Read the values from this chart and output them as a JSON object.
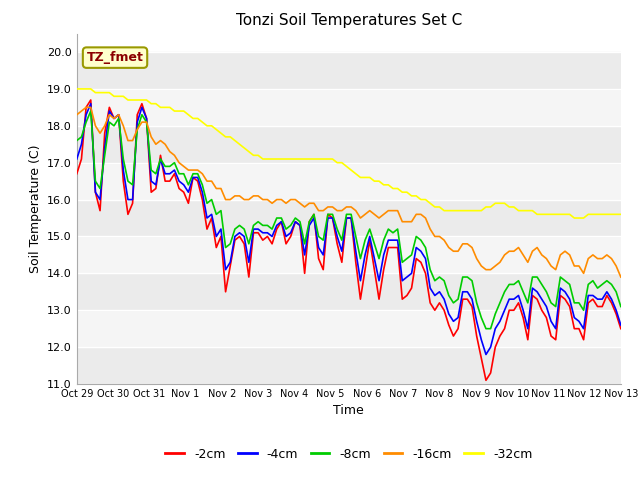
{
  "title": "Tonzi Soil Temperatures Set C",
  "xlabel": "Time",
  "ylabel": "Soil Temperature (C)",
  "ylim": [
    11.0,
    20.5
  ],
  "yticks": [
    11.0,
    12.0,
    13.0,
    14.0,
    15.0,
    16.0,
    17.0,
    18.0,
    19.0,
    20.0
  ],
  "x_labels": [
    "Oct 29",
    "Oct 30",
    "Oct 31",
    "Nov 1",
    "Nov 2",
    "Nov 3",
    "Nov 4",
    "Nov 5",
    "Nov 6",
    "Nov 7",
    "Nov 8",
    "Nov 9",
    "Nov 10",
    "Nov 11",
    "Nov 12",
    "Nov 13"
  ],
  "annotation_text": "TZ_fmet",
  "annotation_color": "#8B0000",
  "annotation_bg": "#FFFFCC",
  "annotation_border": "#999900",
  "line_colors": [
    "#FF0000",
    "#0000FF",
    "#00CC00",
    "#FF8C00",
    "#FFFF00"
  ],
  "line_labels": [
    "-2cm",
    "-4cm",
    "-8cm",
    "-16cm",
    "-32cm"
  ],
  "line_width": 1.2,
  "fig_bg": "#FFFFFF",
  "band_colors": [
    "#EBEBEB",
    "#F5F5F5"
  ],
  "grid_color": "#FFFFFF",
  "series": {
    "depth_2cm": [
      16.7,
      17.1,
      18.5,
      18.7,
      16.2,
      15.7,
      17.8,
      18.5,
      18.2,
      18.3,
      16.5,
      15.6,
      15.9,
      18.3,
      18.6,
      18.2,
      16.2,
      16.3,
      17.2,
      16.5,
      16.5,
      16.7,
      16.3,
      16.2,
      15.9,
      16.6,
      16.5,
      16.0,
      15.2,
      15.5,
      14.7,
      15.0,
      13.5,
      14.2,
      14.9,
      15.0,
      14.8,
      13.9,
      15.1,
      15.1,
      14.9,
      15.0,
      14.8,
      15.2,
      15.4,
      14.8,
      15.0,
      15.4,
      15.3,
      14.0,
      15.4,
      15.6,
      14.4,
      14.1,
      15.6,
      15.5,
      14.8,
      14.3,
      15.5,
      15.5,
      14.3,
      13.3,
      14.1,
      14.9,
      14.1,
      13.3,
      14.1,
      14.7,
      14.7,
      14.7,
      13.3,
      13.4,
      13.6,
      14.4,
      14.3,
      14.0,
      13.2,
      13.0,
      13.2,
      13.0,
      12.6,
      12.3,
      12.5,
      13.3,
      13.3,
      13.1,
      12.3,
      11.7,
      11.1,
      11.3,
      12.0,
      12.3,
      12.5,
      13.0,
      13.0,
      13.2,
      12.8,
      12.2,
      13.4,
      13.3,
      13.0,
      12.8,
      12.3,
      12.2,
      13.4,
      13.3,
      13.1,
      12.5,
      12.5,
      12.2,
      13.2,
      13.3,
      13.1,
      13.1,
      13.4,
      13.2,
      12.9,
      12.5
    ],
    "depth_4cm": [
      17.1,
      17.5,
      18.3,
      18.6,
      16.2,
      16.0,
      17.4,
      18.4,
      18.2,
      18.3,
      16.8,
      16.0,
      16.0,
      18.1,
      18.5,
      18.2,
      16.5,
      16.4,
      17.1,
      16.7,
      16.7,
      16.8,
      16.5,
      16.4,
      16.2,
      16.6,
      16.6,
      16.2,
      15.5,
      15.6,
      15.0,
      15.2,
      14.1,
      14.3,
      15.0,
      15.1,
      15.0,
      14.3,
      15.2,
      15.2,
      15.1,
      15.1,
      15.0,
      15.3,
      15.4,
      15.0,
      15.1,
      15.4,
      15.3,
      14.5,
      15.3,
      15.5,
      14.7,
      14.5,
      15.5,
      15.5,
      15.0,
      14.6,
      15.5,
      15.5,
      14.6,
      13.8,
      14.5,
      15.0,
      14.4,
      13.8,
      14.5,
      14.9,
      14.9,
      14.9,
      13.8,
      13.9,
      14.0,
      14.7,
      14.6,
      14.4,
      13.6,
      13.4,
      13.5,
      13.3,
      12.9,
      12.7,
      12.8,
      13.5,
      13.5,
      13.3,
      12.7,
      12.2,
      11.8,
      12.0,
      12.5,
      12.7,
      13.0,
      13.3,
      13.3,
      13.4,
      13.0,
      12.5,
      13.6,
      13.5,
      13.3,
      13.1,
      12.7,
      12.5,
      13.6,
      13.5,
      13.3,
      12.8,
      12.7,
      12.5,
      13.4,
      13.4,
      13.3,
      13.3,
      13.5,
      13.3,
      13.0,
      12.6
    ],
    "depth_8cm": [
      17.6,
      17.7,
      18.1,
      18.4,
      16.5,
      16.3,
      17.2,
      18.1,
      18.0,
      18.2,
      17.1,
      16.5,
      16.4,
      17.9,
      18.3,
      18.1,
      16.8,
      16.7,
      17.1,
      16.9,
      16.9,
      17.0,
      16.7,
      16.7,
      16.4,
      16.7,
      16.7,
      16.4,
      15.9,
      16.0,
      15.6,
      15.7,
      14.7,
      14.8,
      15.2,
      15.3,
      15.2,
      14.8,
      15.3,
      15.4,
      15.3,
      15.3,
      15.2,
      15.5,
      15.5,
      15.2,
      15.3,
      15.5,
      15.4,
      14.8,
      15.4,
      15.6,
      15.0,
      14.9,
      15.6,
      15.6,
      15.2,
      14.9,
      15.6,
      15.6,
      15.0,
      14.4,
      14.9,
      15.2,
      14.8,
      14.4,
      14.9,
      15.2,
      15.1,
      15.2,
      14.3,
      14.4,
      14.5,
      15.0,
      14.9,
      14.7,
      14.1,
      13.8,
      13.9,
      13.8,
      13.4,
      13.2,
      13.3,
      13.9,
      13.9,
      13.8,
      13.2,
      12.8,
      12.5,
      12.5,
      12.9,
      13.2,
      13.5,
      13.7,
      13.7,
      13.8,
      13.5,
      13.2,
      13.9,
      13.9,
      13.7,
      13.5,
      13.2,
      13.1,
      13.9,
      13.8,
      13.7,
      13.2,
      13.2,
      13.0,
      13.7,
      13.8,
      13.6,
      13.7,
      13.8,
      13.7,
      13.5,
      13.1
    ],
    "depth_16cm": [
      18.3,
      18.4,
      18.5,
      18.5,
      18.0,
      17.8,
      18.0,
      18.3,
      18.2,
      18.3,
      18.0,
      17.6,
      17.6,
      17.9,
      18.1,
      18.1,
      17.7,
      17.5,
      17.6,
      17.5,
      17.3,
      17.2,
      17.0,
      16.9,
      16.8,
      16.8,
      16.8,
      16.7,
      16.5,
      16.5,
      16.3,
      16.3,
      16.0,
      16.0,
      16.1,
      16.1,
      16.0,
      16.0,
      16.1,
      16.1,
      16.0,
      16.0,
      15.9,
      16.0,
      16.0,
      15.9,
      16.0,
      16.0,
      15.9,
      15.8,
      15.9,
      15.9,
      15.7,
      15.7,
      15.8,
      15.8,
      15.7,
      15.7,
      15.8,
      15.8,
      15.7,
      15.5,
      15.6,
      15.7,
      15.6,
      15.5,
      15.6,
      15.7,
      15.7,
      15.7,
      15.4,
      15.4,
      15.4,
      15.6,
      15.6,
      15.5,
      15.2,
      15.0,
      15.0,
      14.9,
      14.7,
      14.6,
      14.6,
      14.8,
      14.8,
      14.7,
      14.4,
      14.2,
      14.1,
      14.1,
      14.2,
      14.3,
      14.5,
      14.6,
      14.6,
      14.7,
      14.5,
      14.3,
      14.6,
      14.7,
      14.5,
      14.4,
      14.2,
      14.1,
      14.5,
      14.6,
      14.5,
      14.2,
      14.2,
      14.0,
      14.4,
      14.5,
      14.4,
      14.4,
      14.5,
      14.4,
      14.2,
      13.9
    ],
    "depth_32cm": [
      19.0,
      19.0,
      19.0,
      19.0,
      18.9,
      18.9,
      18.9,
      18.9,
      18.8,
      18.8,
      18.8,
      18.7,
      18.7,
      18.7,
      18.7,
      18.7,
      18.6,
      18.6,
      18.5,
      18.5,
      18.5,
      18.4,
      18.4,
      18.4,
      18.3,
      18.2,
      18.2,
      18.1,
      18.0,
      18.0,
      17.9,
      17.8,
      17.7,
      17.7,
      17.6,
      17.5,
      17.4,
      17.3,
      17.2,
      17.2,
      17.1,
      17.1,
      17.1,
      17.1,
      17.1,
      17.1,
      17.1,
      17.1,
      17.1,
      17.1,
      17.1,
      17.1,
      17.1,
      17.1,
      17.1,
      17.1,
      17.0,
      17.0,
      16.9,
      16.8,
      16.7,
      16.6,
      16.6,
      16.6,
      16.5,
      16.5,
      16.4,
      16.4,
      16.3,
      16.3,
      16.2,
      16.2,
      16.1,
      16.1,
      16.0,
      16.0,
      15.9,
      15.8,
      15.8,
      15.7,
      15.7,
      15.7,
      15.7,
      15.7,
      15.7,
      15.7,
      15.7,
      15.7,
      15.8,
      15.8,
      15.9,
      15.9,
      15.9,
      15.8,
      15.8,
      15.7,
      15.7,
      15.7,
      15.7,
      15.6,
      15.6,
      15.6,
      15.6,
      15.6,
      15.6,
      15.6,
      15.6,
      15.5,
      15.5,
      15.5,
      15.6,
      15.6,
      15.6,
      15.6,
      15.6,
      15.6,
      15.6,
      15.6
    ]
  }
}
